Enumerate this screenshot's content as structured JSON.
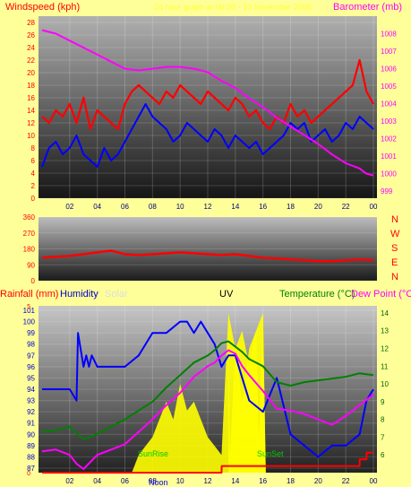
{
  "header": {
    "windspeed_label": "Windspeed (kph)",
    "period_label": "24 hour graph at 00:00 - 10 November 2008",
    "barometer_label": "Barometer (mb)"
  },
  "direction_letters": [
    "N",
    "W",
    "S",
    "E",
    "N"
  ],
  "bottom_header": {
    "rainfall": "Rainfall (mm)",
    "humidity": "Humidity",
    "solar": "Solar",
    "uv": "UV",
    "temperature": "Temperature (°C)",
    "dewpoint": "Dew Point (°C)"
  },
  "annotations": {
    "sunrise": "SunRise",
    "sunset": "SunSet",
    "noon": "Noon"
  },
  "colors": {
    "background": "#ffff99",
    "wind": "#ff0000",
    "wind_avg": "#0000ff",
    "barometer": "#ff00ff",
    "direction": "#ff0000",
    "rain": "#ff0000",
    "humidity": "#0000ff",
    "solar": "#ffff00",
    "temperature": "#008000",
    "dewpoint": "#ff00ff",
    "annotation": "#00cc00"
  },
  "chart_data": [
    {
      "type": "line",
      "x_ticks": [
        "02",
        "04",
        "06",
        "08",
        "10",
        "12",
        "14",
        "16",
        "18",
        "20",
        "22",
        "00"
      ],
      "left_axis": {
        "ticks": [
          0,
          2,
          4,
          6,
          8,
          10,
          12,
          14,
          16,
          18,
          20,
          22,
          24,
          26,
          28
        ],
        "ylim": [
          0,
          29
        ]
      },
      "right_axis": {
        "ticks": [
          999,
          1000,
          1001,
          1002,
          1003,
          1004,
          1005,
          1006,
          1007,
          1008
        ],
        "ylim": [
          998.6,
          1009.0
        ]
      },
      "series": [
        {
          "role": "wind_gust",
          "axis": "left",
          "x": [
            0,
            0.5,
            1,
            1.5,
            2,
            2.5,
            3,
            3.5,
            4,
            4.5,
            5,
            5.5,
            6,
            6.5,
            7,
            7.5,
            8,
            8.5,
            9,
            9.5,
            10,
            10.5,
            11,
            11.5,
            12,
            12.5,
            13,
            13.5,
            14,
            14.5,
            15,
            15.5,
            16,
            16.5,
            17,
            17.5,
            18,
            18.5,
            19,
            19.5,
            20,
            20.5,
            21,
            21.5,
            22,
            22.5,
            23,
            23.5,
            24
          ],
          "values": [
            13,
            12,
            14,
            13,
            15,
            12,
            16,
            11,
            14,
            13,
            12,
            11,
            15,
            17,
            18,
            17,
            16,
            15,
            17,
            16,
            18,
            17,
            16,
            15,
            17,
            16,
            15,
            14,
            16,
            15,
            13,
            14,
            12,
            11,
            13,
            12,
            15,
            13,
            14,
            12,
            13,
            14,
            15,
            16,
            17,
            18,
            22,
            17,
            15
          ]
        },
        {
          "role": "wind_avg",
          "axis": "left",
          "x": [
            0,
            0.5,
            1,
            1.5,
            2,
            2.5,
            3,
            3.5,
            4,
            4.5,
            5,
            5.5,
            6,
            6.5,
            7,
            7.5,
            8,
            8.5,
            9,
            9.5,
            10,
            10.5,
            11,
            11.5,
            12,
            12.5,
            13,
            13.5,
            14,
            14.5,
            15,
            15.5,
            16,
            16.5,
            17,
            17.5,
            18,
            18.5,
            19,
            19.5,
            20,
            20.5,
            21,
            21.5,
            22,
            22.5,
            23,
            23.5,
            24
          ],
          "values": [
            5,
            8,
            9,
            7,
            8,
            10,
            7,
            6,
            5,
            8,
            6,
            7,
            9,
            11,
            13,
            15,
            13,
            12,
            11,
            9,
            10,
            12,
            11,
            10,
            9,
            11,
            10,
            8,
            10,
            9,
            8,
            9,
            7,
            8,
            9,
            10,
            12,
            11,
            12,
            9,
            10,
            11,
            9,
            10,
            12,
            11,
            13,
            12,
            11
          ]
        },
        {
          "role": "barometer",
          "axis": "right",
          "x": [
            0,
            1,
            2,
            3,
            4,
            5,
            6,
            7,
            8,
            9,
            10,
            11,
            12,
            13,
            14,
            15,
            16,
            17,
            18,
            19,
            20,
            21,
            22,
            23,
            23.5,
            24
          ],
          "values": [
            1008.2,
            1008.0,
            1007.6,
            1007.2,
            1006.8,
            1006.4,
            1006.0,
            1005.9,
            1006.0,
            1006.1,
            1006.1,
            1006.0,
            1005.8,
            1005.3,
            1004.9,
            1004.3,
            1003.8,
            1003.2,
            1002.7,
            1002.2,
            1001.7,
            1001.1,
            1000.6,
            1000.3,
            1000.0,
            999.9
          ]
        }
      ]
    },
    {
      "type": "line",
      "x_ticks": [
        "02",
        "04",
        "06",
        "08",
        "10",
        "12",
        "14",
        "16",
        "18",
        "20",
        "22",
        "00"
      ],
      "y_ticks": [
        0,
        90,
        180,
        270,
        360
      ],
      "ylim": [
        0,
        360
      ],
      "series": [
        {
          "role": "wind_direction",
          "x": [
            0,
            1,
            2,
            3,
            4,
            5,
            6,
            7,
            8,
            9,
            10,
            11,
            12,
            13,
            14,
            15,
            16,
            17,
            18,
            19,
            20,
            21,
            22,
            23,
            24
          ],
          "values": [
            130,
            135,
            140,
            150,
            160,
            170,
            150,
            145,
            150,
            155,
            160,
            155,
            150,
            145,
            150,
            140,
            130,
            125,
            120,
            115,
            110,
            110,
            115,
            120,
            115
          ]
        }
      ]
    },
    {
      "type": "line",
      "x_ticks": [
        "02",
        "04",
        "06",
        "08",
        "10",
        "12",
        "14",
        "16",
        "18",
        "20",
        "22",
        "00"
      ],
      "left_axis": {
        "ticks": [
          87,
          88,
          89,
          90,
          91,
          92,
          93,
          94,
          95,
          96,
          97,
          98,
          99,
          100,
          101
        ],
        "ylim": [
          86.6,
          101.4
        ]
      },
      "right_axis": {
        "ticks": [
          6,
          7,
          8,
          9,
          10,
          11,
          12,
          13,
          14
        ],
        "ylim": [
          5,
          14.4
        ]
      },
      "rain_axis": {
        "ticks": [
          0,
          5
        ],
        "ylim": [
          0,
          5
        ]
      },
      "series": [
        {
          "role": "humidity",
          "axis": "left",
          "x": [
            0,
            2,
            2.5,
            2.6,
            3,
            3.2,
            3.4,
            3.6,
            4,
            5,
            6,
            7,
            8,
            9,
            10,
            10.5,
            11,
            11.5,
            12,
            12.5,
            13,
            13.5,
            14,
            14.5,
            15,
            16,
            17,
            18,
            19,
            20,
            21,
            22,
            23,
            23.5,
            24
          ],
          "values": [
            94,
            94,
            93,
            99,
            96,
            97,
            96,
            97,
            96,
            96,
            96,
            97,
            99,
            99,
            100,
            100,
            99,
            100,
            99,
            98,
            96,
            97,
            97,
            95,
            93,
            92,
            95,
            90,
            89,
            88,
            89,
            89,
            90,
            93,
            94
          ]
        },
        {
          "role": "temperature",
          "axis": "right",
          "x": [
            0,
            1,
            2,
            2.5,
            3,
            3.5,
            4,
            5,
            6,
            7,
            8,
            9,
            10,
            11,
            12,
            12.5,
            13,
            13.5,
            14,
            14.5,
            15,
            16,
            17,
            18,
            19,
            20,
            21,
            22,
            23,
            24
          ],
          "values": [
            7.3,
            7.4,
            7.6,
            7.2,
            6.9,
            7.0,
            7.2,
            7.6,
            8.0,
            8.5,
            9.0,
            9.8,
            10.5,
            11.2,
            11.6,
            11.9,
            12.3,
            12.4,
            12.1,
            11.8,
            11.4,
            11.0,
            10.1,
            9.9,
            10.1,
            10.2,
            10.3,
            10.4,
            10.6,
            10.5
          ]
        },
        {
          "role": "dewpoint",
          "axis": "right",
          "x": [
            0,
            1,
            2,
            2.5,
            3,
            3.5,
            4,
            5,
            6,
            7,
            8,
            9,
            10,
            11,
            12,
            12.5,
            13,
            13.5,
            14,
            14.5,
            15,
            16,
            17,
            18,
            19,
            20,
            21,
            22,
            23,
            24
          ],
          "values": [
            6.2,
            6.3,
            6.0,
            5.5,
            5.2,
            5.6,
            6.0,
            6.3,
            6.6,
            7.3,
            8.0,
            8.8,
            9.5,
            10.4,
            11.0,
            11.2,
            11.6,
            11.9,
            11.7,
            11.0,
            10.5,
            9.6,
            8.6,
            8.5,
            8.3,
            8.0,
            7.7,
            8.2,
            8.8,
            9.4
          ]
        },
        {
          "role": "rain",
          "axis": "rain",
          "x": [
            0,
            13,
            13.01,
            23,
            23.01,
            23.5,
            23.51,
            24
          ],
          "values": [
            0,
            0,
            0.2,
            0.2,
            0.4,
            0.4,
            0.6,
            0.6
          ]
        },
        {
          "role": "uv",
          "axis": "right",
          "x": [
            13.5,
            13.6,
            14,
            14.5,
            15,
            15.5,
            15.7,
            16,
            16.2
          ],
          "values": [
            14,
            6,
            12,
            9,
            12,
            13,
            7,
            14,
            5
          ]
        },
        {
          "role": "solar",
          "axis": "right",
          "x": [
            6.5,
            7,
            7.5,
            8,
            8.5,
            9,
            9.5,
            10,
            10.5,
            11,
            11.5,
            12,
            12.5,
            13,
            13.5,
            14,
            14.5,
            15,
            15.5,
            16,
            16.2
          ],
          "values": [
            5,
            6,
            6.5,
            7,
            8,
            9,
            8,
            10,
            8.5,
            9,
            8,
            7,
            6.5,
            6,
            14,
            12,
            13,
            11,
            13,
            14,
            5
          ]
        }
      ]
    }
  ]
}
